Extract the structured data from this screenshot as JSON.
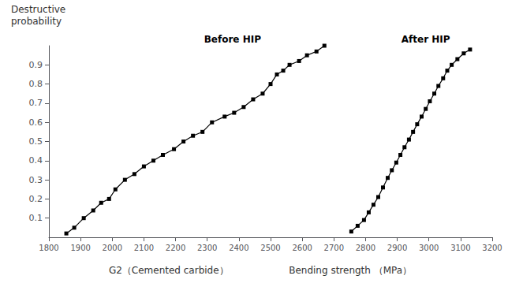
{
  "chart_data": {
    "type": "line",
    "ylabel": [
      "Destructive",
      "probability"
    ],
    "xlabel": [
      "G2（Cemented carbide）",
      "Bending strength （MPa）"
    ],
    "xlim": [
      1800,
      3200
    ],
    "ylim": [
      0,
      1.0
    ],
    "xticks": [
      1800,
      1900,
      2000,
      2100,
      2200,
      2300,
      2400,
      2500,
      2600,
      2700,
      2800,
      2900,
      3000,
      3100,
      3200
    ],
    "yticks": [
      0.1,
      0.2,
      0.3,
      0.4,
      0.5,
      0.6,
      0.7,
      0.8,
      0.9
    ],
    "grid": false,
    "series": [
      {
        "color": "#000000",
        "marker": "square",
        "x": [
          1855,
          1880,
          1910,
          1940,
          1965,
          1990,
          2010,
          2040,
          2070,
          2100,
          2130,
          2160,
          2195,
          2225,
          2255,
          2285,
          2315,
          2355,
          2385,
          2415,
          2445,
          2475,
          2500,
          2520,
          2540,
          2560,
          2590,
          2615,
          2645,
          2670
        ],
        "values": [
          0.02,
          0.05,
          0.1,
          0.14,
          0.18,
          0.2,
          0.25,
          0.3,
          0.33,
          0.37,
          0.4,
          0.43,
          0.46,
          0.5,
          0.53,
          0.55,
          0.6,
          0.63,
          0.65,
          0.68,
          0.72,
          0.75,
          0.8,
          0.85,
          0.87,
          0.9,
          0.92,
          0.95,
          0.97,
          1.0
        ]
      },
      {
        "color": "#000000",
        "marker": "square",
        "x": [
          2755,
          2775,
          2795,
          2810,
          2825,
          2840,
          2855,
          2870,
          2883,
          2897,
          2910,
          2923,
          2937,
          2950,
          2963,
          2977,
          2990,
          3003,
          3017,
          3030,
          3045,
          3058,
          3072,
          3090,
          3110,
          3130
        ],
        "values": [
          0.03,
          0.06,
          0.09,
          0.13,
          0.17,
          0.21,
          0.26,
          0.31,
          0.35,
          0.39,
          0.43,
          0.47,
          0.51,
          0.55,
          0.59,
          0.63,
          0.67,
          0.71,
          0.75,
          0.79,
          0.83,
          0.87,
          0.9,
          0.93,
          0.96,
          0.98
        ]
      }
    ],
    "annotations": [
      {
        "text": "Before HIP",
        "x": 2380,
        "y": 1.0
      },
      {
        "text": "After HIP",
        "x": 2990,
        "y": 1.0
      }
    ]
  }
}
